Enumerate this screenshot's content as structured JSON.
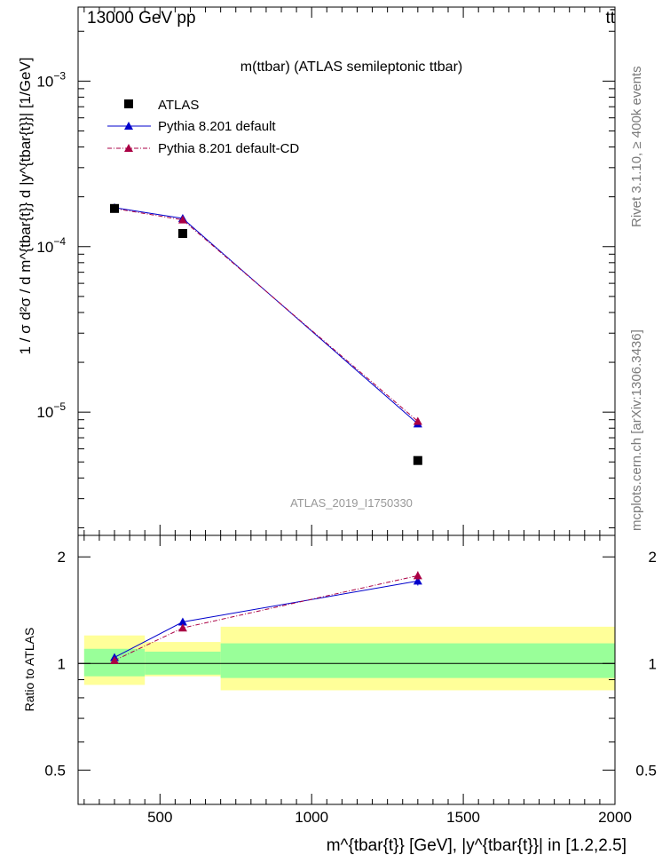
{
  "header": {
    "left": "13000 GeV pp",
    "right": "tt̄"
  },
  "side_labels": {
    "rivet": "Rivet 3.1.10, ≥ 400k events",
    "mcplots": "mcplots.cern.ch [arXiv:1306.3436]"
  },
  "colors": {
    "data": "#000000",
    "pythia_default": "#0000cc",
    "pythia_cd": "#aa0044",
    "band_inner": "#99ff99",
    "band_outer": "#ffff99",
    "watermark": "#999999"
  },
  "chart_data": {
    "type": "scatter",
    "title": "m(ttbar) (ATLAS semileptonic ttbar)",
    "watermark": "ATLAS_2019_I1750330",
    "ylabel_main": "1 / σ d²σ / d m^{tbar{t}} d |y^{tbar{t}}| [1/GeV]",
    "ylabel_ratio": "Ratio to ATLAS",
    "xlabel": "m^{tbar{t}} [GeV], |y^{tbar{t}}| in [1.2,2.5]",
    "xlim": [
      230,
      2000
    ],
    "ylim_main": [
      1.8e-06,
      0.0028
    ],
    "ylim_ratio": [
      0.4,
      2.3
    ],
    "ylog": true,
    "x_ticks": [
      "500",
      "1000",
      "1500",
      "2000"
    ],
    "y_ticks_main": [
      "10^{-5}",
      "10^{-4}",
      "10^{-3}"
    ],
    "y_ticks_ratio": [
      "0.5",
      "1",
      "2"
    ],
    "legend_position": "top-left",
    "bins": [
      {
        "lo": 250,
        "hi": 450
      },
      {
        "lo": 450,
        "hi": 700
      },
      {
        "lo": 700,
        "hi": 2000
      }
    ],
    "series": [
      {
        "name": "ATLAS",
        "x": [
          350,
          575,
          1350
        ],
        "y": [
          0.00017,
          0.00012,
          5.1e-06
        ],
        "marker": "square"
      },
      {
        "name": "Pythia 8.201 default",
        "x": [
          350,
          575,
          1350
        ],
        "y": [
          0.000172,
          0.000148,
          8.5e-06
        ],
        "marker": "triangle",
        "line": "solid"
      },
      {
        "name": "Pythia 8.201 default-CD",
        "x": [
          350,
          575,
          1350
        ],
        "y": [
          0.00017,
          0.000145,
          8.8e-06
        ],
        "marker": "triangle",
        "line": "dashdot"
      }
    ],
    "ratio": {
      "reference": 1.0,
      "band_inner": [
        [
          0.92,
          1.1
        ],
        [
          0.93,
          1.08
        ],
        [
          0.91,
          1.14
        ]
      ],
      "band_outer": [
        [
          0.87,
          1.2
        ],
        [
          0.92,
          1.15
        ],
        [
          0.84,
          1.27
        ]
      ],
      "series": [
        {
          "name": "Pythia 8.201 default",
          "values": [
            1.04,
            1.31,
            1.71
          ],
          "err": [
            0.02,
            0.02,
            0.05
          ]
        },
        {
          "name": "Pythia 8.201 default-CD",
          "values": [
            1.02,
            1.26,
            1.77
          ],
          "err": [
            0.02,
            0.02,
            0.05
          ]
        }
      ]
    }
  }
}
